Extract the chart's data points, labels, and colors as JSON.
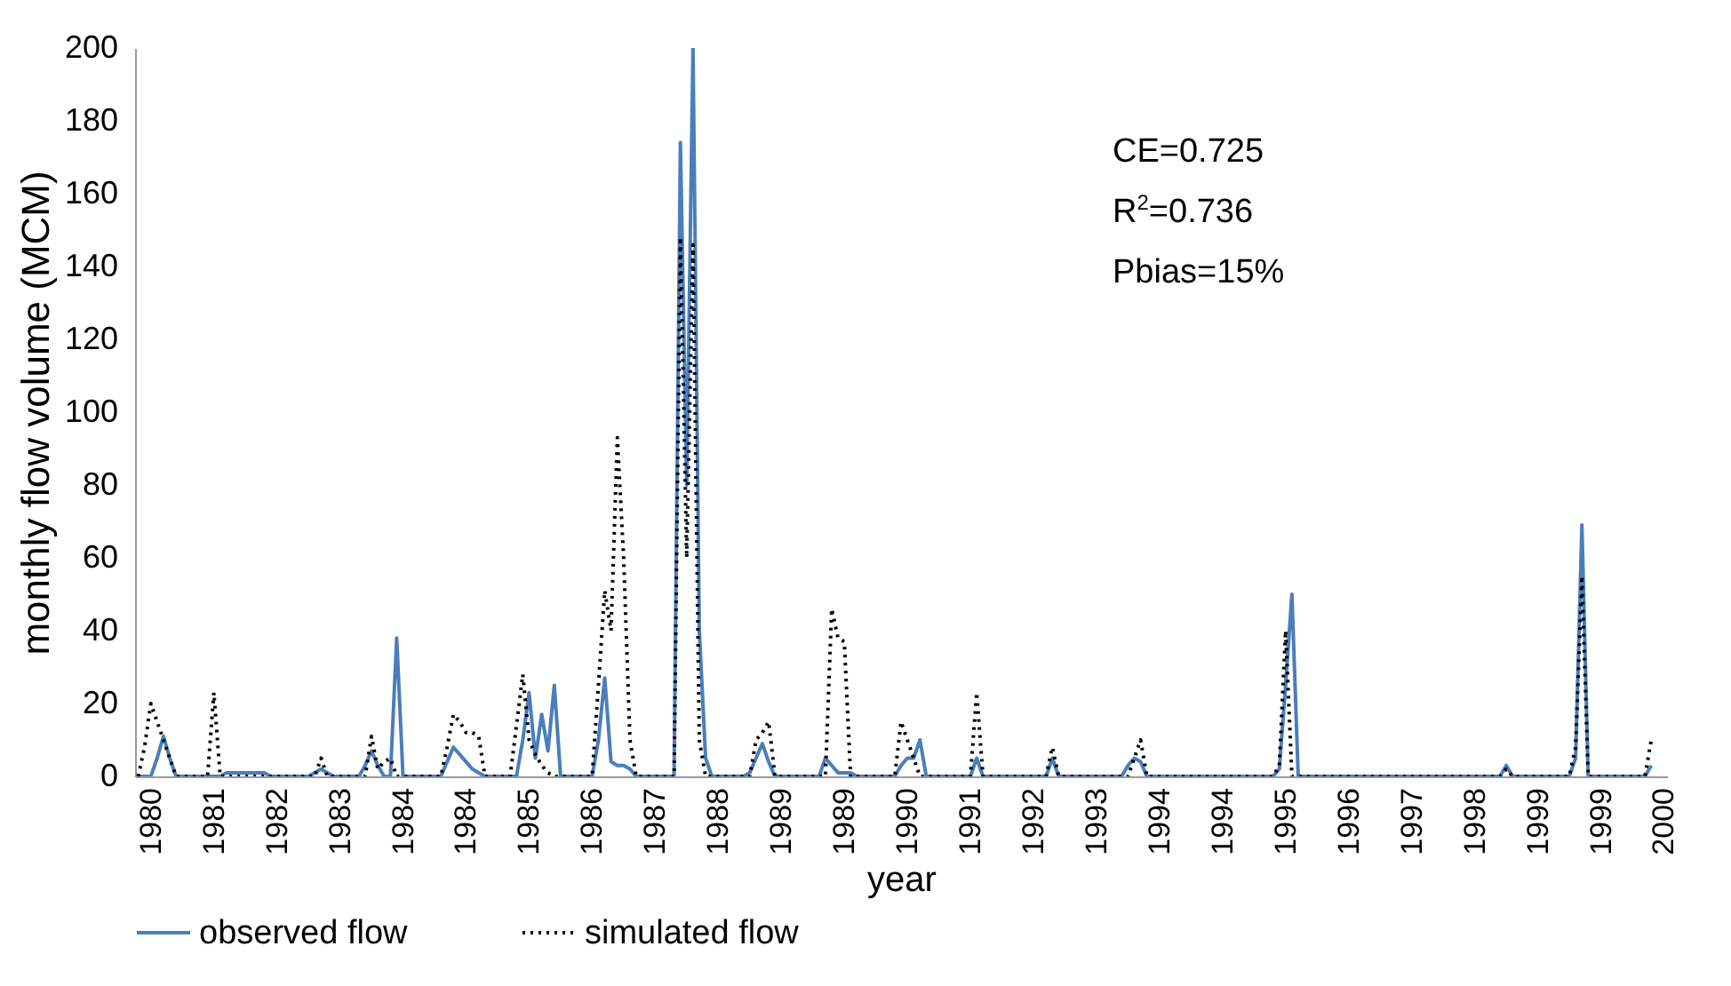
{
  "chart_data": {
    "type": "line",
    "xlabel": "year",
    "ylabel": "monthly flow volume (MCM)",
    "categories": [
      null,
      null,
      "1980",
      null,
      null,
      null,
      null,
      null,
      null,
      null,
      null,
      null,
      "1981",
      null,
      null,
      null,
      null,
      null,
      null,
      null,
      null,
      null,
      "1982",
      null,
      null,
      null,
      null,
      null,
      null,
      null,
      null,
      null,
      "1983",
      null,
      null,
      null,
      null,
      null,
      null,
      null,
      null,
      null,
      "1984",
      null,
      null,
      null,
      null,
      null,
      null,
      null,
      null,
      null,
      "1984",
      null,
      null,
      null,
      null,
      null,
      null,
      null,
      null,
      null,
      "1985",
      null,
      null,
      null,
      null,
      null,
      null,
      null,
      null,
      null,
      "1986",
      null,
      null,
      null,
      null,
      null,
      null,
      null,
      null,
      null,
      "1987",
      null,
      null,
      null,
      null,
      null,
      null,
      null,
      null,
      null,
      "1988",
      null,
      null,
      null,
      null,
      null,
      null,
      null,
      null,
      null,
      "1989",
      null,
      null,
      null,
      null,
      null,
      null,
      null,
      null,
      null,
      "1989",
      null,
      null,
      null,
      null,
      null,
      null,
      null,
      null,
      null,
      "1990",
      null,
      null,
      null,
      null,
      null,
      null,
      null,
      null,
      null,
      "1991",
      null,
      null,
      null,
      null,
      null,
      null,
      null,
      null,
      null,
      "1992",
      null,
      null,
      null,
      null,
      null,
      null,
      null,
      null,
      null,
      "1993",
      null,
      null,
      null,
      null,
      null,
      null,
      null,
      null,
      null,
      "1994",
      null,
      null,
      null,
      null,
      null,
      null,
      null,
      null,
      null,
      "1994",
      null,
      null,
      null,
      null,
      null,
      null,
      null,
      null,
      null,
      "1995",
      null,
      null,
      null,
      null,
      null,
      null,
      null,
      null,
      null,
      "1996",
      null,
      null,
      null,
      null,
      null,
      null,
      null,
      null,
      null,
      "1997",
      null,
      null,
      null,
      null,
      null,
      null,
      null,
      null,
      null,
      "1998",
      null,
      null,
      null,
      null,
      null,
      null,
      null,
      null,
      null,
      "1999",
      null,
      null,
      null,
      null,
      null,
      null,
      null,
      null,
      null,
      "1999",
      null,
      null,
      null,
      null,
      null,
      null,
      null,
      null,
      null,
      "2000"
    ],
    "ylim": [
      0,
      200
    ],
    "yticks": [
      0,
      20,
      40,
      60,
      80,
      100,
      120,
      140,
      160,
      180,
      200
    ],
    "legend": "bottom",
    "annotations": [
      "CE=0.725",
      "R$^{2}$=0.736",
      "Pbias=15%"
    ],
    "series": [
      {
        "name": "observed flow",
        "color": "#4a7ebb",
        "line_style": "solid",
        "values": [
          0,
          0,
          0,
          5,
          11,
          5,
          0,
          0,
          0,
          0,
          0,
          0,
          0,
          0,
          1,
          1,
          1,
          1,
          1,
          1,
          1,
          0,
          0,
          0,
          0,
          0,
          0,
          0,
          1,
          2,
          1,
          0,
          0,
          0,
          0,
          0,
          3,
          7,
          3,
          0,
          0,
          38,
          0,
          0,
          0,
          0,
          0,
          0,
          0,
          4,
          8,
          6,
          4,
          2,
          1,
          0,
          0,
          0,
          0,
          0,
          0,
          10,
          23,
          5,
          17,
          7,
          25,
          0,
          0,
          0,
          0,
          0,
          0,
          10,
          27,
          4,
          3,
          3,
          2,
          0,
          0,
          0,
          0,
          0,
          0,
          0,
          174,
          80,
          200,
          40,
          5,
          0,
          0,
          0,
          0,
          0,
          0,
          1,
          5,
          9,
          4,
          0,
          0,
          0,
          0,
          0,
          0,
          0,
          0,
          5,
          3,
          1,
          1,
          1,
          0,
          0,
          0,
          0,
          0,
          0,
          0,
          3,
          5,
          5,
          10,
          0,
          0,
          0,
          0,
          0,
          0,
          0,
          0,
          5,
          0,
          0,
          0,
          0,
          0,
          0,
          0,
          0,
          0,
          0,
          0,
          5,
          0,
          0,
          0,
          0,
          0,
          0,
          0,
          0,
          0,
          0,
          0,
          3,
          5,
          4,
          0,
          0,
          0,
          0,
          0,
          0,
          0,
          0,
          0,
          0,
          0,
          0,
          0,
          0,
          0,
          0,
          0,
          0,
          0,
          0,
          0,
          2,
          25,
          50,
          0,
          0,
          0,
          0,
          0,
          0,
          0,
          0,
          0,
          0,
          0,
          0,
          0,
          0,
          0,
          0,
          0,
          0,
          0,
          0,
          0,
          0,
          0,
          0,
          0,
          0,
          0,
          0,
          0,
          0,
          0,
          0,
          0,
          3,
          0,
          0,
          0,
          0,
          0,
          0,
          0,
          0,
          0,
          0,
          5,
          69,
          0,
          0,
          0,
          0,
          0,
          0,
          0,
          0,
          0,
          0,
          3,
          null,
          null
        ]
      },
      {
        "name": "simulated flow",
        "color": "#000000",
        "line_style": "dotted",
        "values": [
          0,
          8,
          20,
          15,
          10,
          5,
          0,
          0,
          0,
          0,
          0,
          0,
          23,
          0,
          0,
          0,
          0,
          0,
          0,
          0,
          0,
          0,
          0,
          0,
          0,
          0,
          0,
          0,
          0,
          5,
          0,
          0,
          0,
          0,
          0,
          0,
          0,
          11,
          2,
          4,
          5,
          0,
          0,
          0,
          0,
          0,
          0,
          0,
          0,
          8,
          17,
          15,
          12,
          12,
          11,
          0,
          0,
          0,
          0,
          0,
          14,
          28,
          10,
          6,
          3,
          1,
          0,
          0,
          0,
          0,
          0,
          0,
          0,
          25,
          51,
          40,
          93,
          60,
          10,
          0,
          0,
          0,
          0,
          0,
          0,
          0,
          148,
          60,
          146,
          10,
          0,
          0,
          0,
          0,
          0,
          0,
          0,
          0,
          10,
          12,
          15,
          0,
          0,
          0,
          0,
          0,
          0,
          0,
          0,
          0,
          46,
          38,
          37,
          0,
          0,
          0,
          0,
          0,
          0,
          0,
          0,
          15,
          10,
          5,
          0,
          0,
          0,
          0,
          0,
          0,
          0,
          0,
          0,
          23,
          0,
          0,
          0,
          0,
          0,
          0,
          0,
          0,
          0,
          0,
          0,
          8,
          0,
          0,
          0,
          0,
          0,
          0,
          0,
          0,
          0,
          0,
          0,
          0,
          5,
          10,
          0,
          0,
          0,
          0,
          0,
          0,
          0,
          0,
          0,
          0,
          0,
          0,
          0,
          0,
          0,
          0,
          0,
          0,
          0,
          0,
          0,
          3,
          40,
          0,
          0,
          0,
          0,
          0,
          0,
          0,
          0,
          0,
          0,
          0,
          0,
          0,
          0,
          0,
          0,
          0,
          0,
          0,
          0,
          0,
          0,
          0,
          0,
          0,
          0,
          0,
          0,
          0,
          0,
          0,
          0,
          0,
          0,
          2,
          0,
          0,
          0,
          0,
          0,
          0,
          0,
          0,
          0,
          0,
          8,
          55,
          0,
          0,
          0,
          0,
          0,
          0,
          0,
          0,
          0,
          0,
          10,
          null,
          null
        ]
      }
    ]
  }
}
